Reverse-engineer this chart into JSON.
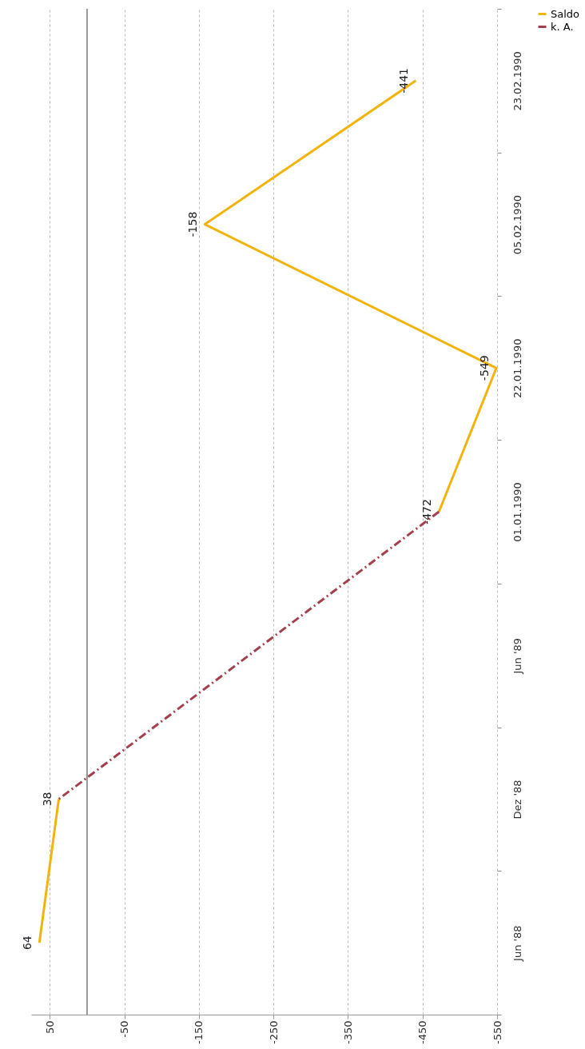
{
  "chart_data": {
    "type": "line",
    "orientation": "horizontal",
    "categories": [
      "23.02.1990",
      "05.02.1990",
      "22.01.1990",
      "01.01.1990",
      "Jun '89",
      "Dez '88",
      "Jun '88"
    ],
    "series": [
      {
        "name": "Saldo",
        "color": "#f2b40c",
        "line_style": "solid",
        "values": [
          -441,
          -158,
          -549,
          -472,
          null,
          38,
          64
        ],
        "value_labels": [
          "-441",
          "-158",
          "-549",
          "-472",
          null,
          "38",
          "64"
        ]
      },
      {
        "name": "k. A.",
        "color": "#a3404d",
        "line_style": "dashed",
        "x": [
          "01.01.1990",
          "Dez '88"
        ],
        "values": [
          -472,
          38
        ],
        "value_labels": [
          null,
          null
        ]
      }
    ],
    "xlim": [
      75,
      -550
    ],
    "xticks": [
      50,
      -50,
      -150,
      -250,
      -350,
      -450,
      -550
    ],
    "ref_lines": [
      {
        "axis": "x",
        "value": 0,
        "color": "#555555"
      }
    ],
    "grid": "x",
    "legend": "right",
    "marker": "none"
  }
}
